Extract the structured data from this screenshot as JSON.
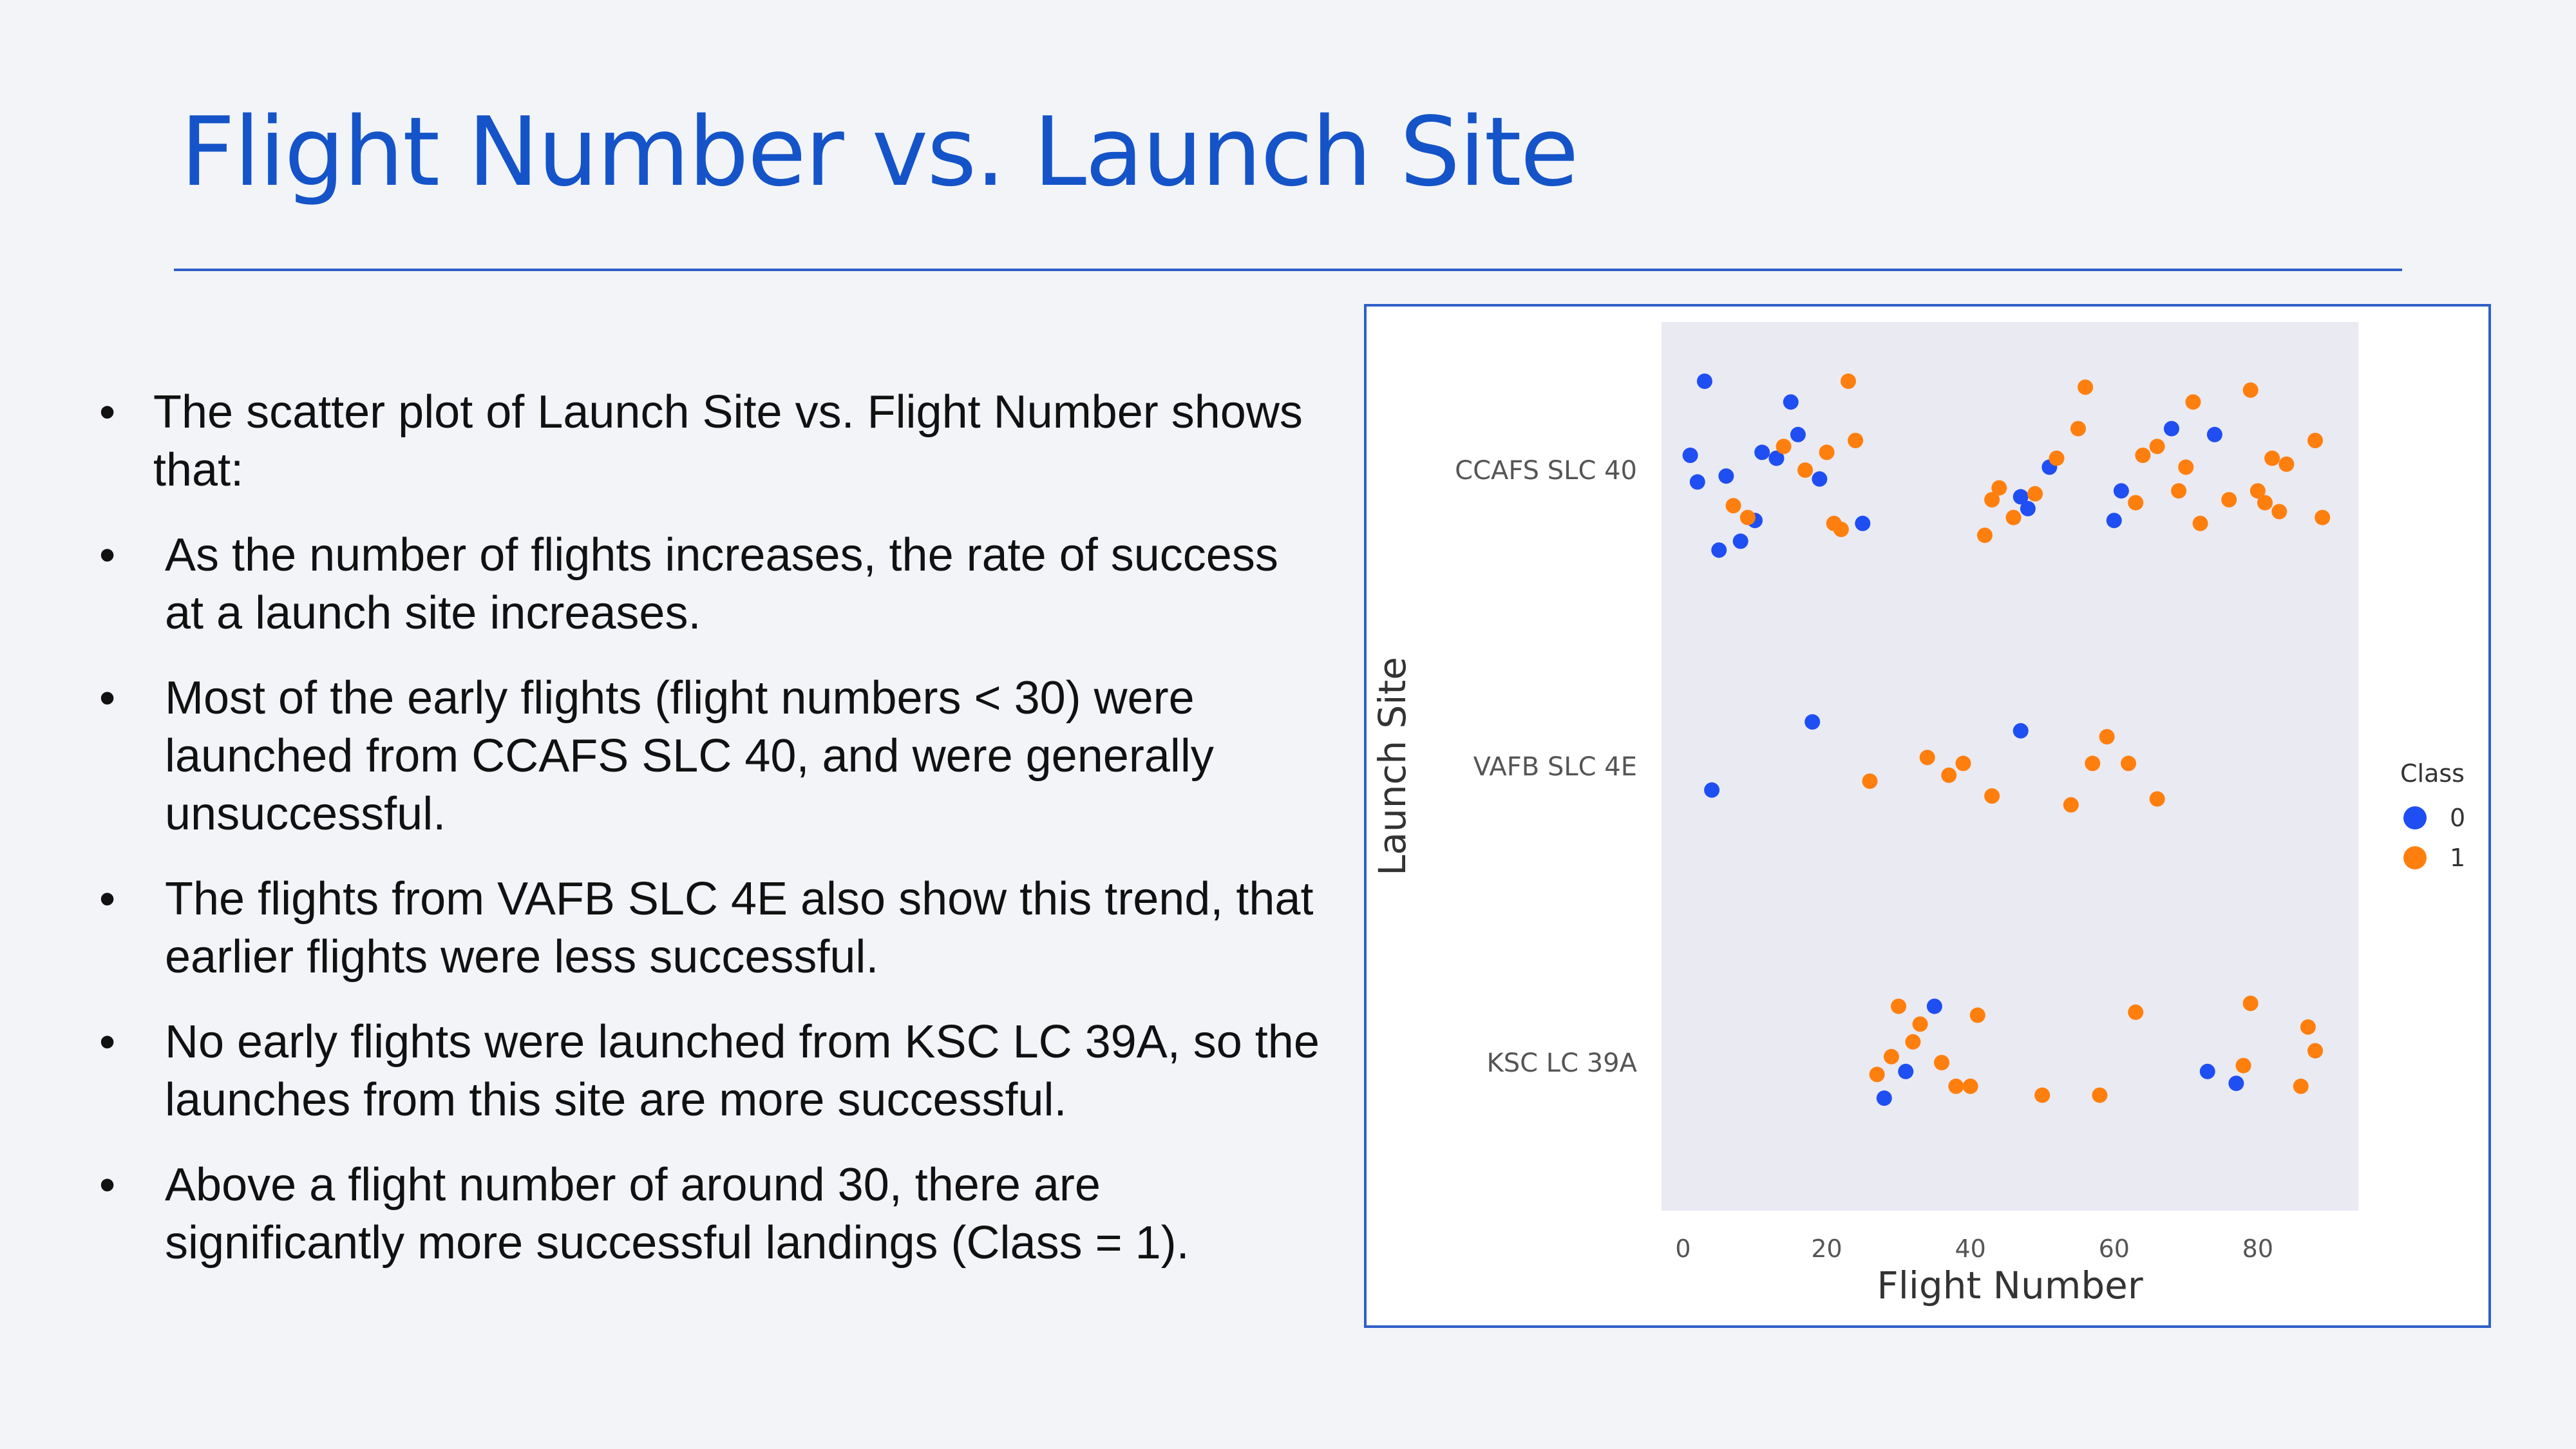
{
  "slide": {
    "title": "Flight Number vs. Launch Site",
    "bullets": [
      "The scatter plot of Launch Site vs. Flight Number shows that:",
      "As the number of flights increases, the rate of success at a launch site increases.",
      "Most of the early flights (flight numbers < 30) were launched from CCAFS SLC 40, and were generally unsuccessful.",
      "The flights from VAFB SLC 4E also show this trend, that earlier flights were less successful.",
      "No early flights were launched from KSC LC 39A, so the launches from this site are more successful.",
      "Above a flight number of around 30, there are significantly more successful landings (Class = 1)."
    ]
  },
  "chart_data": {
    "type": "scatter",
    "title": "",
    "xlabel": "Flight Number",
    "ylabel": "Launch Site",
    "xlim": [
      -3,
      94
    ],
    "xticks": [
      0,
      20,
      40,
      60,
      80
    ],
    "categories": [
      "CCAFS SLC 40",
      "VAFB SLC 4E",
      "KSC LC 39A"
    ],
    "grid": false,
    "legend": {
      "title": "Class",
      "placement": "right",
      "entries": [
        {
          "label": "0",
          "color": "#1f4ef2"
        },
        {
          "label": "1",
          "color": "#ff7f0e"
        }
      ]
    },
    "series": [
      {
        "name": "0",
        "color": "#1f4ef2",
        "points": [
          {
            "x": 1,
            "site": "CCAFS SLC 40",
            "jitter": 0.05
          },
          {
            "x": 2,
            "site": "CCAFS SLC 40",
            "jitter": -0.04
          },
          {
            "x": 3,
            "site": "CCAFS SLC 40",
            "jitter": 0.3
          },
          {
            "x": 5,
            "site": "CCAFS SLC 40",
            "jitter": -0.27
          },
          {
            "x": 6,
            "site": "CCAFS SLC 40",
            "jitter": -0.02
          },
          {
            "x": 8,
            "site": "CCAFS SLC 40",
            "jitter": -0.24
          },
          {
            "x": 10,
            "site": "CCAFS SLC 40",
            "jitter": -0.17
          },
          {
            "x": 11,
            "site": "CCAFS SLC 40",
            "jitter": 0.06
          },
          {
            "x": 13,
            "site": "CCAFS SLC 40",
            "jitter": 0.04
          },
          {
            "x": 15,
            "site": "CCAFS SLC 40",
            "jitter": 0.23
          },
          {
            "x": 16,
            "site": "CCAFS SLC 40",
            "jitter": 0.12
          },
          {
            "x": 19,
            "site": "CCAFS SLC 40",
            "jitter": -0.03
          },
          {
            "x": 25,
            "site": "CCAFS SLC 40",
            "jitter": -0.18
          },
          {
            "x": 47,
            "site": "CCAFS SLC 40",
            "jitter": -0.09
          },
          {
            "x": 48,
            "site": "CCAFS SLC 40",
            "jitter": -0.13
          },
          {
            "x": 51,
            "site": "CCAFS SLC 40",
            "jitter": 0.01
          },
          {
            "x": 60,
            "site": "CCAFS SLC 40",
            "jitter": -0.17
          },
          {
            "x": 61,
            "site": "CCAFS SLC 40",
            "jitter": -0.07
          },
          {
            "x": 68,
            "site": "CCAFS SLC 40",
            "jitter": 0.14
          },
          {
            "x": 74,
            "site": "CCAFS SLC 40",
            "jitter": 0.12
          },
          {
            "x": 4,
            "site": "VAFB SLC 4E",
            "jitter": -0.08
          },
          {
            "x": 18,
            "site": "VAFB SLC 4E",
            "jitter": 0.15
          },
          {
            "x": 47,
            "site": "VAFB SLC 4E",
            "jitter": 0.12
          },
          {
            "x": 28,
            "site": "KSC LC 39A",
            "jitter": -0.12
          },
          {
            "x": 31,
            "site": "KSC LC 39A",
            "jitter": -0.03
          },
          {
            "x": 35,
            "site": "KSC LC 39A",
            "jitter": 0.19
          },
          {
            "x": 73,
            "site": "KSC LC 39A",
            "jitter": -0.03
          },
          {
            "x": 77,
            "site": "KSC LC 39A",
            "jitter": -0.07
          }
        ]
      },
      {
        "name": "1",
        "color": "#ff7f0e",
        "points": [
          {
            "x": 7,
            "site": "CCAFS SLC 40",
            "jitter": -0.12
          },
          {
            "x": 9,
            "site": "CCAFS SLC 40",
            "jitter": -0.16
          },
          {
            "x": 14,
            "site": "CCAFS SLC 40",
            "jitter": 0.08
          },
          {
            "x": 17,
            "site": "CCAFS SLC 40",
            "jitter": 0.0
          },
          {
            "x": 20,
            "site": "CCAFS SLC 40",
            "jitter": 0.06
          },
          {
            "x": 21,
            "site": "CCAFS SLC 40",
            "jitter": -0.18
          },
          {
            "x": 22,
            "site": "CCAFS SLC 40",
            "jitter": -0.2
          },
          {
            "x": 23,
            "site": "CCAFS SLC 40",
            "jitter": 0.3
          },
          {
            "x": 24,
            "site": "CCAFS SLC 40",
            "jitter": 0.1
          },
          {
            "x": 42,
            "site": "CCAFS SLC 40",
            "jitter": -0.22
          },
          {
            "x": 43,
            "site": "CCAFS SLC 40",
            "jitter": -0.1
          },
          {
            "x": 44,
            "site": "CCAFS SLC 40",
            "jitter": -0.06
          },
          {
            "x": 46,
            "site": "CCAFS SLC 40",
            "jitter": -0.16
          },
          {
            "x": 49,
            "site": "CCAFS SLC 40",
            "jitter": -0.08
          },
          {
            "x": 52,
            "site": "CCAFS SLC 40",
            "jitter": 0.04
          },
          {
            "x": 55,
            "site": "CCAFS SLC 40",
            "jitter": 0.14
          },
          {
            "x": 56,
            "site": "CCAFS SLC 40",
            "jitter": 0.28
          },
          {
            "x": 63,
            "site": "CCAFS SLC 40",
            "jitter": -0.11
          },
          {
            "x": 64,
            "site": "CCAFS SLC 40",
            "jitter": 0.05
          },
          {
            "x": 66,
            "site": "CCAFS SLC 40",
            "jitter": 0.08
          },
          {
            "x": 69,
            "site": "CCAFS SLC 40",
            "jitter": -0.07
          },
          {
            "x": 70,
            "site": "CCAFS SLC 40",
            "jitter": 0.01
          },
          {
            "x": 71,
            "site": "CCAFS SLC 40",
            "jitter": 0.23
          },
          {
            "x": 72,
            "site": "CCAFS SLC 40",
            "jitter": -0.18
          },
          {
            "x": 76,
            "site": "CCAFS SLC 40",
            "jitter": -0.1
          },
          {
            "x": 79,
            "site": "CCAFS SLC 40",
            "jitter": 0.27
          },
          {
            "x": 80,
            "site": "CCAFS SLC 40",
            "jitter": -0.07
          },
          {
            "x": 81,
            "site": "CCAFS SLC 40",
            "jitter": -0.11
          },
          {
            "x": 82,
            "site": "CCAFS SLC 40",
            "jitter": 0.04
          },
          {
            "x": 83,
            "site": "CCAFS SLC 40",
            "jitter": -0.14
          },
          {
            "x": 84,
            "site": "CCAFS SLC 40",
            "jitter": 0.02
          },
          {
            "x": 88,
            "site": "CCAFS SLC 40",
            "jitter": 0.1
          },
          {
            "x": 89,
            "site": "CCAFS SLC 40",
            "jitter": -0.16
          },
          {
            "x": 26,
            "site": "VAFB SLC 4E",
            "jitter": -0.05
          },
          {
            "x": 34,
            "site": "VAFB SLC 4E",
            "jitter": 0.03
          },
          {
            "x": 37,
            "site": "VAFB SLC 4E",
            "jitter": -0.03
          },
          {
            "x": 39,
            "site": "VAFB SLC 4E",
            "jitter": 0.01
          },
          {
            "x": 43,
            "site": "VAFB SLC 4E",
            "jitter": -0.1
          },
          {
            "x": 54,
            "site": "VAFB SLC 4E",
            "jitter": -0.13
          },
          {
            "x": 57,
            "site": "VAFB SLC 4E",
            "jitter": 0.01
          },
          {
            "x": 59,
            "site": "VAFB SLC 4E",
            "jitter": 0.1
          },
          {
            "x": 62,
            "site": "VAFB SLC 4E",
            "jitter": 0.01
          },
          {
            "x": 66,
            "site": "VAFB SLC 4E",
            "jitter": -0.11
          },
          {
            "x": 27,
            "site": "KSC LC 39A",
            "jitter": -0.04
          },
          {
            "x": 29,
            "site": "KSC LC 39A",
            "jitter": 0.02
          },
          {
            "x": 30,
            "site": "KSC LC 39A",
            "jitter": 0.19
          },
          {
            "x": 32,
            "site": "KSC LC 39A",
            "jitter": 0.07
          },
          {
            "x": 33,
            "site": "KSC LC 39A",
            "jitter": 0.13
          },
          {
            "x": 36,
            "site": "KSC LC 39A",
            "jitter": 0.0
          },
          {
            "x": 38,
            "site": "KSC LC 39A",
            "jitter": -0.08
          },
          {
            "x": 40,
            "site": "KSC LC 39A",
            "jitter": -0.08
          },
          {
            "x": 41,
            "site": "KSC LC 39A",
            "jitter": 0.16
          },
          {
            "x": 50,
            "site": "KSC LC 39A",
            "jitter": -0.11
          },
          {
            "x": 58,
            "site": "KSC LC 39A",
            "jitter": -0.11
          },
          {
            "x": 63,
            "site": "KSC LC 39A",
            "jitter": 0.17
          },
          {
            "x": 78,
            "site": "KSC LC 39A",
            "jitter": -0.01
          },
          {
            "x": 79,
            "site": "KSC LC 39A",
            "jitter": 0.2
          },
          {
            "x": 86,
            "site": "KSC LC 39A",
            "jitter": -0.08
          },
          {
            "x": 87,
            "site": "KSC LC 39A",
            "jitter": 0.12
          },
          {
            "x": 88,
            "site": "KSC LC 39A",
            "jitter": 0.04
          }
        ]
      }
    ]
  }
}
